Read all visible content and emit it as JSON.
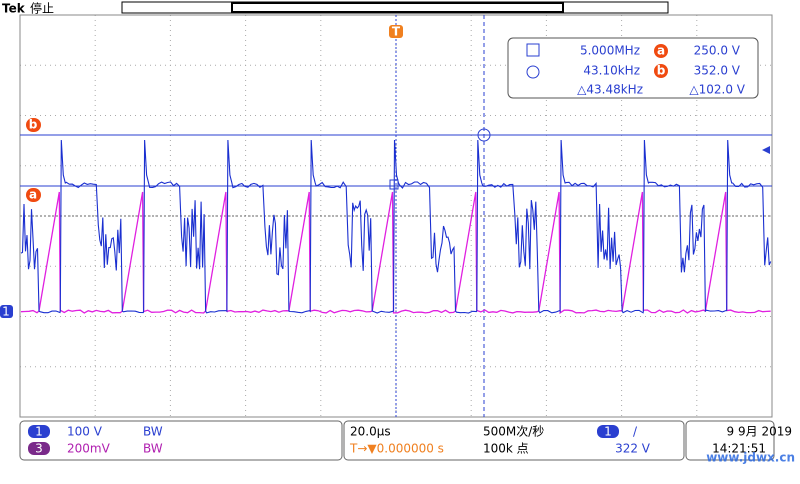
{
  "header": {
    "brand": "Tek",
    "status": "停止"
  },
  "trigger_marker": "T",
  "readout": {
    "rows": [
      [
        "5.000MHz",
        "a",
        "250.0 V"
      ],
      [
        "43.10kHz",
        "b",
        "352.0 V"
      ],
      [
        "△43.48kHz",
        "△102.0 V"
      ]
    ]
  },
  "cursor_labels": {
    "b": "b",
    "a": "a"
  },
  "channel_marker": "1",
  "bottom": {
    "ch1": {
      "num": "1",
      "scale": "100 V",
      "bw": "BW"
    },
    "ch3": {
      "num": "3",
      "scale": "200mV",
      "bw": "BW"
    },
    "timebase": "20.0µs",
    "trigger_pos": "T→▼0.000000 s",
    "sample_rate": "500M次/秒",
    "record": "100k 点",
    "trigger": {
      "num": "1",
      "slope": "/",
      "level": "322 V"
    },
    "date": "9 9月 2019",
    "time": "14:21:51"
  },
  "watermark": "www.jdwx.cn"
}
